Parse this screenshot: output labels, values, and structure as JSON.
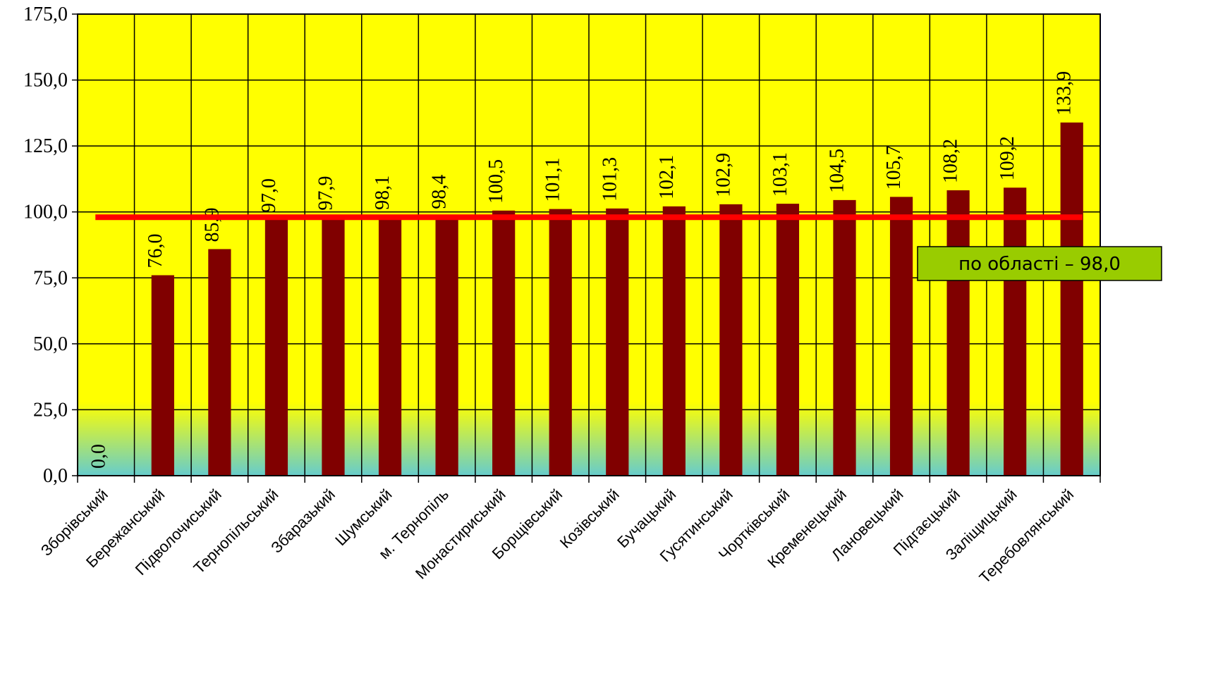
{
  "chart_data": {
    "type": "bar",
    "categories": [
      "Зборівський",
      "Бережанський",
      "Підволочиський",
      "Тернопільський",
      "Збаразький",
      "Шумський",
      "м. Тернопіль",
      "Монастириський",
      "Борщівський",
      "Козівський",
      "Бучацький",
      "Гусятинський",
      "Чортківський",
      "Кременецький",
      "Лановецький",
      "Підгаєцький",
      "Заліщицький",
      "Теребовлянський"
    ],
    "values": [
      0.0,
      76.0,
      85.9,
      97.0,
      97.9,
      98.1,
      98.4,
      100.5,
      101.1,
      101.3,
      102.1,
      102.9,
      103.1,
      104.5,
      105.7,
      108.2,
      109.2,
      133.9
    ],
    "value_labels": [
      "0,0",
      "76,0",
      "85,9",
      "97,0",
      "97,9",
      "98,1",
      "98,4",
      "100,5",
      "101,1",
      "101,3",
      "102,1",
      "102,9",
      "103,1",
      "104,5",
      "105,7",
      "108,2",
      "109,2",
      "133,9"
    ],
    "ylim": [
      0,
      175
    ],
    "yticks": [
      0,
      25,
      50,
      75,
      100,
      125,
      150,
      175
    ],
    "ytick_labels": [
      "0,0",
      "25,0",
      "50,0",
      "75,0",
      "100,0",
      "125,0",
      "150,0",
      "175,0"
    ],
    "grid": true,
    "reference_line": {
      "value": 98.0,
      "label": "по області – 98,0"
    },
    "colors": {
      "bar": "#800000",
      "reference_line": "#ff0000",
      "plot_background": "#ffff00",
      "plot_background_bottom": "#66cccc",
      "annotation_box": "#99cc00"
    }
  }
}
